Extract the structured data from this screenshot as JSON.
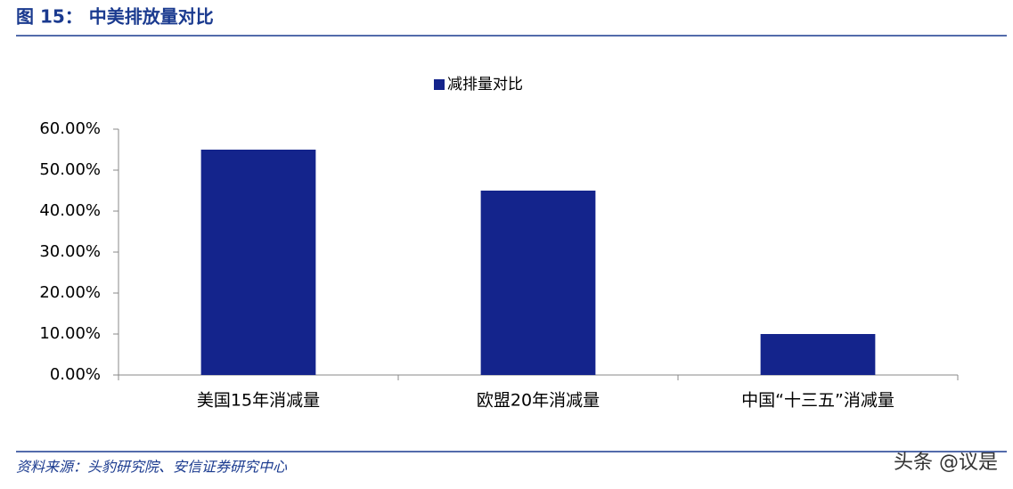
{
  "header": {
    "title": "图 15： 中美排放量对比"
  },
  "chart_data": {
    "type": "bar",
    "categories": [
      "美国15年消减量",
      "欧盟20年消减量",
      "中国“十三五”消减量"
    ],
    "series": [
      {
        "name": "减排量对比",
        "color": "#14248c",
        "values": [
          55,
          45,
          10
        ]
      }
    ],
    "ylim": [
      0,
      60
    ],
    "yticks": [
      {
        "value": 0,
        "label": "0.00%"
      },
      {
        "value": 10,
        "label": "10.00%"
      },
      {
        "value": 20,
        "label": "20.00%"
      },
      {
        "value": 30,
        "label": "30.00%"
      },
      {
        "value": 40,
        "label": "40.00%"
      },
      {
        "value": 50,
        "label": "50.00%"
      },
      {
        "value": 60,
        "label": "60.00%"
      }
    ],
    "grid": false,
    "legend": "top"
  },
  "footer": {
    "source": "资料来源：头豹研究院、安信证券研究中心",
    "watermark": "头条 @议是"
  }
}
